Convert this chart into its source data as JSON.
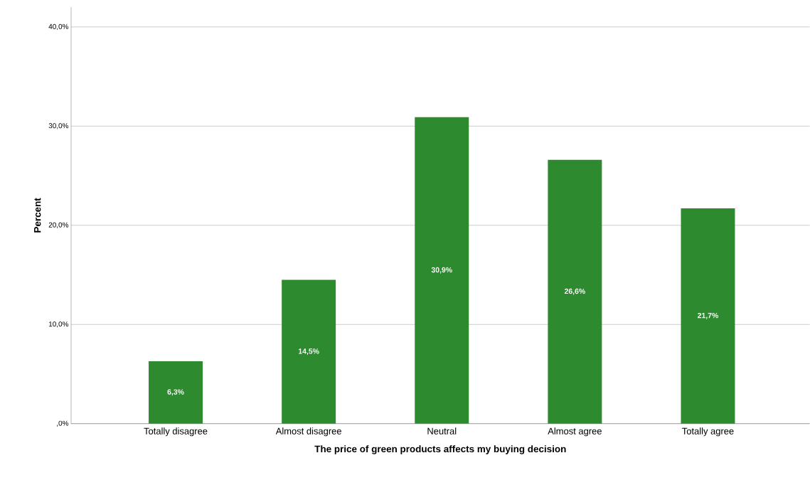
{
  "chart_data": {
    "type": "bar",
    "xlabel": "The price of green products affects my buying decision",
    "ylabel": "Percent",
    "categories": [
      "Totally disagree",
      "Almost disagree",
      "Neutral",
      "Almost agree",
      "Totally agree"
    ],
    "values": [
      6.3,
      14.5,
      30.9,
      26.6,
      21.7
    ],
    "value_labels": [
      "6,3%",
      "14,5%",
      "30,9%",
      "26,6%",
      "21,7%"
    ],
    "color": "#2e8a2e",
    "ylim": [
      0,
      42
    ],
    "yticks": [
      {
        "value": 0,
        "label": ",0%"
      },
      {
        "value": 10,
        "label": "10,0%"
      },
      {
        "value": 20,
        "label": "20,0%"
      },
      {
        "value": 30,
        "label": "30,0%"
      },
      {
        "value": 40,
        "label": "40,0%"
      }
    ],
    "grid": "y"
  }
}
